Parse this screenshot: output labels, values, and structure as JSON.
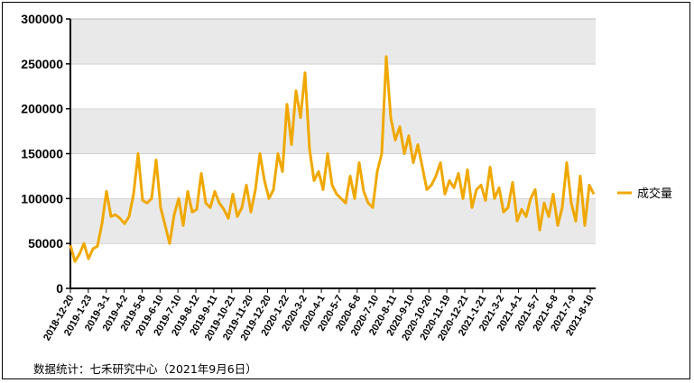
{
  "chart_data": {
    "type": "line",
    "title": "",
    "xlabel": "",
    "ylabel": "",
    "ylim": [
      0,
      300000
    ],
    "yticks": [
      0,
      50000,
      100000,
      150000,
      200000,
      250000,
      300000
    ],
    "ytick_labels": [
      "0",
      "50000",
      "100000",
      "150000",
      "200000",
      "250000",
      "300000"
    ],
    "x_tick_labels": [
      "2018-12-20",
      "2019-1-23",
      "2019-3-1",
      "2019-4-2",
      "2019-5-8",
      "2019-6-10",
      "2019-7-10",
      "2019-8-12",
      "2019-9-11",
      "2019-10-21",
      "2019-11-20",
      "2019-12-20",
      "2020-1-22",
      "2020-3-2",
      "2020-4-1",
      "2020-5-7",
      "2020-6-8",
      "2020-7-10",
      "2020-8-11",
      "2020-9-10",
      "2020-10-20",
      "2020-11-19",
      "2020-12-21",
      "2021-1-21",
      "2021-3-2",
      "2021-4-1",
      "2021-5-7",
      "2021-6-8",
      "2021-7-9",
      "2021-8-10"
    ],
    "grid": "horizontal bands",
    "legend_position": "right",
    "series": [
      {
        "name": "成交量",
        "color": "#f0a800",
        "values": [
          48000,
          30000,
          38000,
          50000,
          33000,
          44000,
          47000,
          72000,
          108000,
          80000,
          82000,
          78000,
          72000,
          80000,
          105000,
          150000,
          98000,
          95000,
          100000,
          143000,
          90000,
          70000,
          50000,
          82000,
          100000,
          70000,
          108000,
          85000,
          88000,
          128000,
          95000,
          90000,
          108000,
          95000,
          88000,
          78000,
          105000,
          80000,
          90000,
          115000,
          85000,
          110000,
          150000,
          120000,
          100000,
          110000,
          150000,
          130000,
          205000,
          160000,
          220000,
          190000,
          240000,
          155000,
          120000,
          130000,
          110000,
          150000,
          115000,
          105000,
          100000,
          95000,
          125000,
          100000,
          140000,
          108000,
          95000,
          90000,
          130000,
          150000,
          258000,
          190000,
          165000,
          180000,
          150000,
          170000,
          140000,
          160000,
          135000,
          110000,
          115000,
          125000,
          140000,
          105000,
          120000,
          112000,
          128000,
          100000,
          132000,
          90000,
          110000,
          115000,
          98000,
          135000,
          100000,
          112000,
          85000,
          90000,
          118000,
          75000,
          88000,
          80000,
          100000,
          110000,
          65000,
          95000,
          80000,
          105000,
          70000,
          90000,
          140000,
          95000,
          75000,
          125000,
          70000,
          115000,
          105000
        ]
      }
    ]
  },
  "footer": {
    "source_note": "数据统计：七禾研究中心（2021年9月6日）"
  }
}
